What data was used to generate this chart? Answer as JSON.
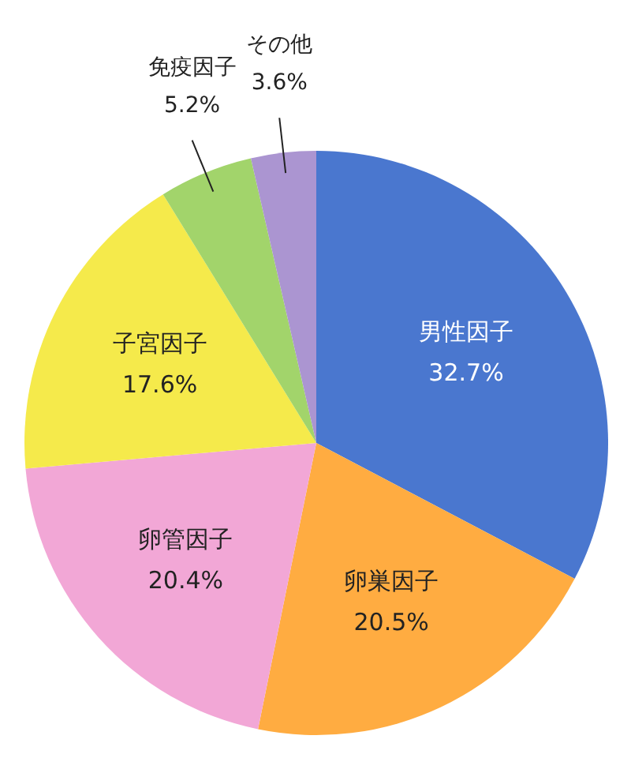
{
  "chart_data": {
    "type": "pie",
    "categories": [
      "男性因子",
      "卵巣因子",
      "卵管因子",
      "子宮因子",
      "免疫因子",
      "その他"
    ],
    "values": [
      32.7,
      20.5,
      20.4,
      17.6,
      5.2,
      3.6
    ],
    "colors": [
      "#4a77cf",
      "#ffac41",
      "#f2a7d6",
      "#f5ea4b",
      "#a2d46b",
      "#ab95d1"
    ],
    "value_labels": [
      "32.7%",
      "20.5%",
      "20.4%",
      "17.6%",
      "5.2%",
      "3.6%"
    ]
  }
}
